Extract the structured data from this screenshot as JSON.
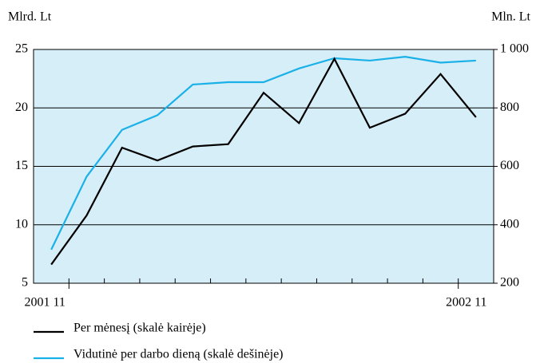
{
  "chart_data": {
    "type": "line",
    "ylabel": "Mlrd. Lt",
    "y2label": "Mln. Lt",
    "categories": [
      "2001 11",
      null,
      null,
      null,
      null,
      null,
      null,
      null,
      null,
      null,
      null,
      null,
      "2002 11"
    ],
    "series": [
      {
        "name": "Per mėnesį (skalė kairėje)",
        "color": "#000000",
        "values": [
          6.6,
          10.8,
          16.6,
          15.5,
          16.7,
          16.9,
          21.3,
          18.7,
          24.2,
          18.3,
          19.5,
          22.9,
          19.2
        ]
      },
      {
        "name": "Vidutinė per darbo dieną (skalė dešinėje)",
        "color": "#1ab0e8",
        "axis": "y2",
        "values": [
          315,
          565,
          725,
          775,
          880,
          888,
          888,
          935,
          970,
          962,
          975,
          955,
          962
        ]
      }
    ],
    "ylim": [
      5,
      25
    ],
    "yticks": [
      5,
      10,
      15,
      20,
      25
    ],
    "y2lim": [
      200,
      1000
    ],
    "y2ticks": [
      200,
      400,
      600,
      800,
      {
        "value": 1000,
        "label": "1 000"
      }
    ],
    "grid": true,
    "background": "#d6eef8"
  }
}
